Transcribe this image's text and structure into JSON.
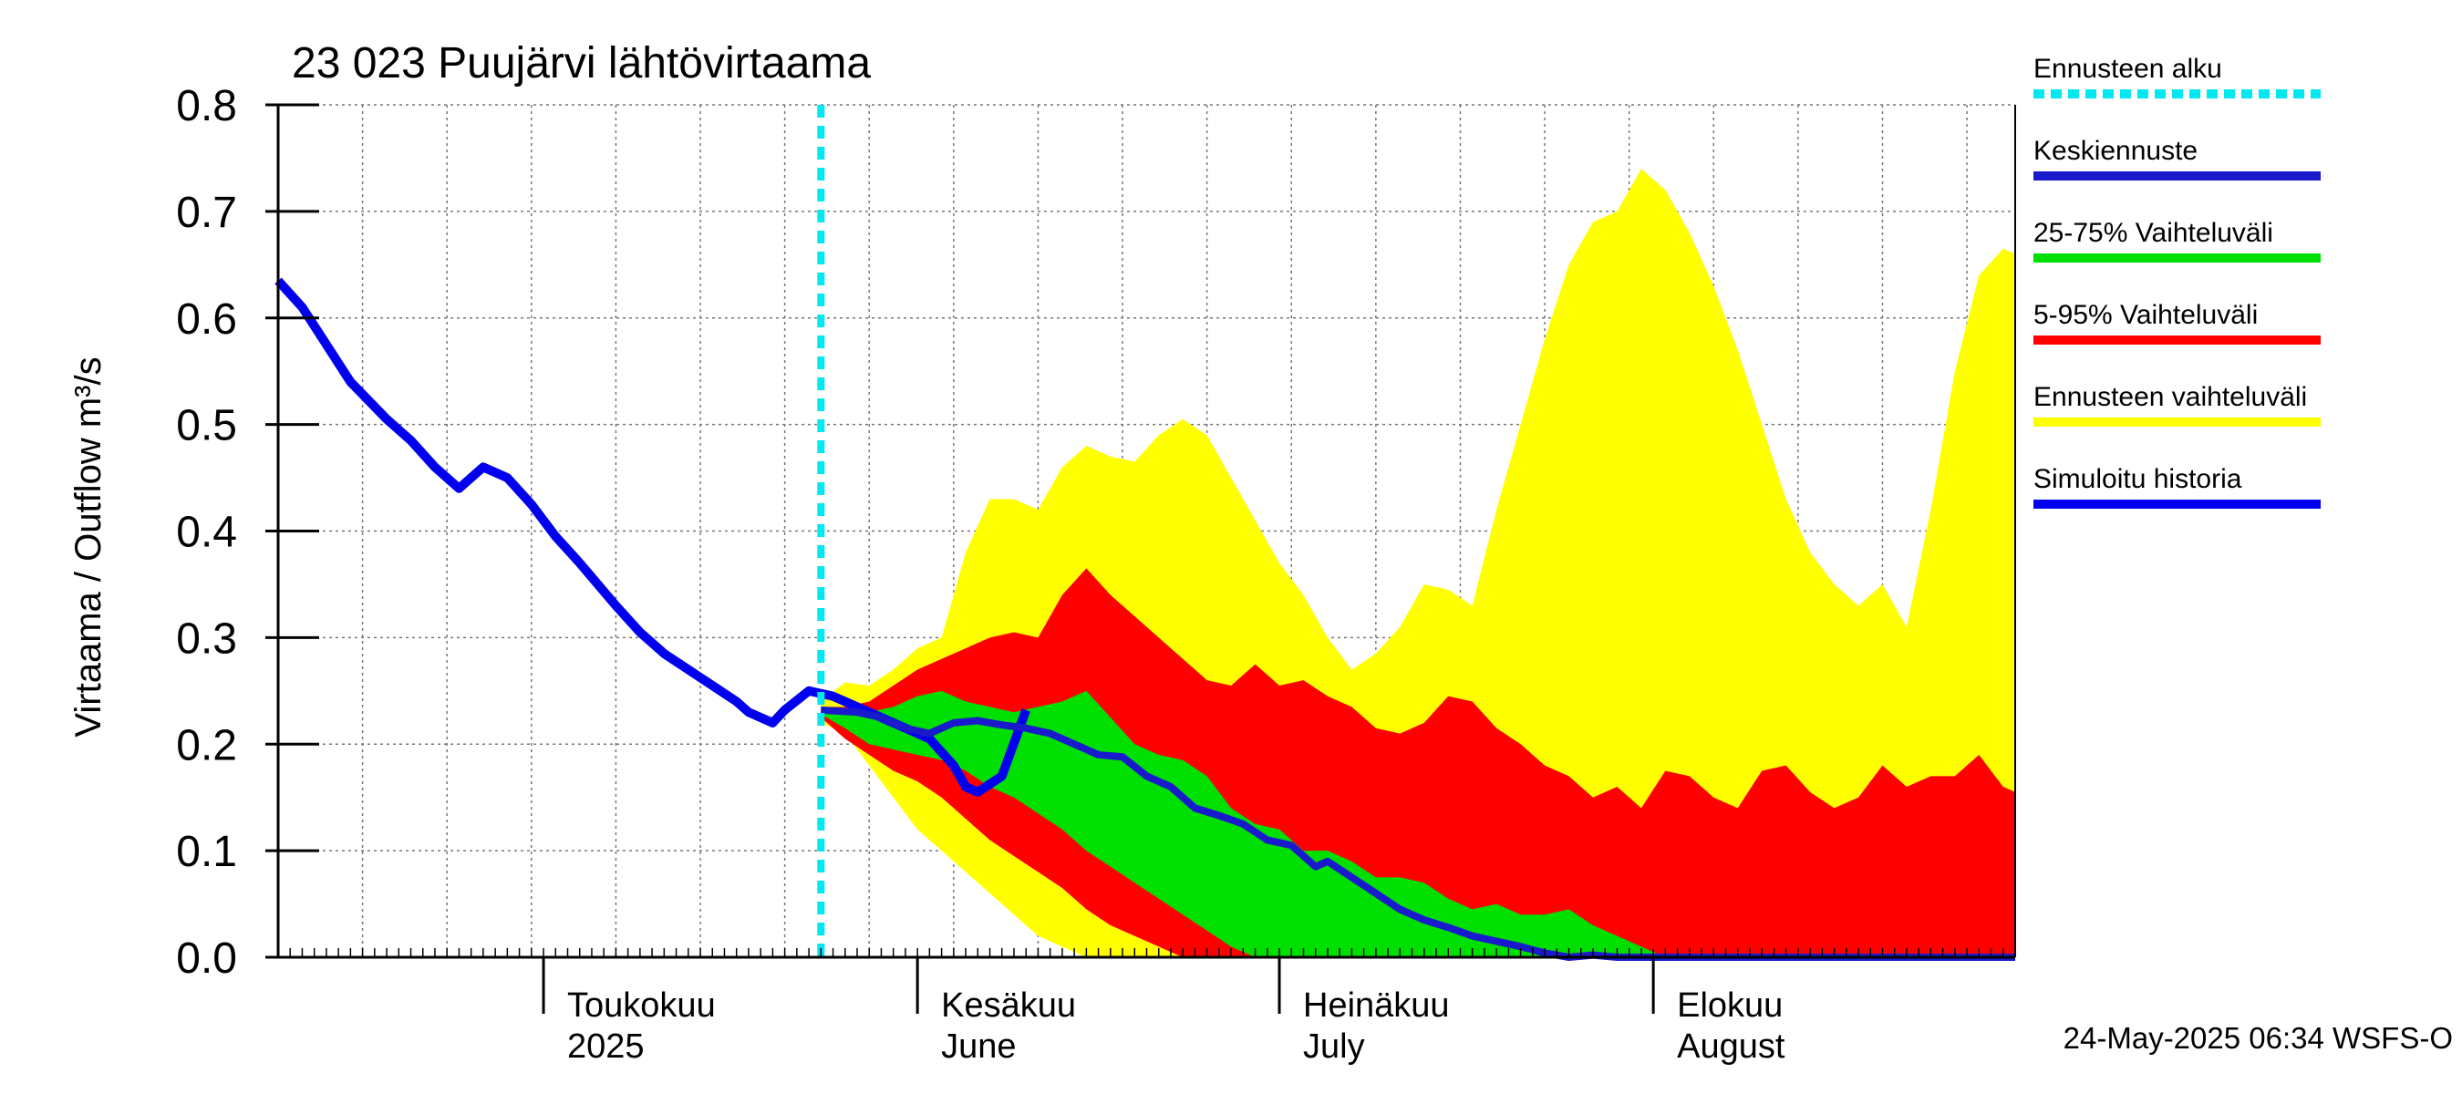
{
  "chart_data": {
    "type": "area",
    "title": "23 023 Puujärvi lähtövirtaama",
    "ylabel": "Virtaama / Outflow    m³/s",
    "ylim": [
      0,
      0.8
    ],
    "y_ticks": [
      "0.0",
      "0.1",
      "0.2",
      "0.3",
      "0.4",
      "0.5",
      "0.6",
      "0.7",
      "0.8"
    ],
    "x_range": [
      "2025-04-09",
      "2025-08-31"
    ],
    "month_labels": [
      {
        "date": "2025-05-01",
        "fi": "Toukokuu",
        "en": "2025"
      },
      {
        "date": "2025-06-01",
        "fi": "Kesäkuu",
        "en": "June"
      },
      {
        "date": "2025-07-01",
        "fi": "Heinäkuu",
        "en": "July"
      },
      {
        "date": "2025-08-01",
        "fi": "Elokuu",
        "en": "August"
      }
    ],
    "forecast_start": "2025-05-24",
    "grid": true,
    "legend_position": "right",
    "legend": [
      {
        "label": "Ennusteen alku",
        "color": "#00e8f0",
        "style": "dashed"
      },
      {
        "label": "Keskiennuste",
        "color": "#1a1acd",
        "style": "solid"
      },
      {
        "label": "25-75% Vaihteluväli",
        "color": "#00e000",
        "style": "solid"
      },
      {
        "label": "5-95% Vaihteluväli",
        "color": "#ff0000",
        "style": "solid"
      },
      {
        "label": "Ennusteen vaihteluväli",
        "color": "#ffff00",
        "style": "solid"
      },
      {
        "label": "Simuloitu historia",
        "color": "#0000ee",
        "style": "solid"
      }
    ],
    "footer": "24-May-2025 06:34 WSFS-O",
    "series": [
      {
        "name": "Simuloitu historia",
        "color": "#0000ee",
        "points": [
          [
            "2025-04-09",
            0.635
          ],
          [
            "2025-04-11",
            0.61
          ],
          [
            "2025-04-13",
            0.575
          ],
          [
            "2025-04-15",
            0.54
          ],
          [
            "2025-04-18",
            0.505
          ],
          [
            "2025-04-20",
            0.485
          ],
          [
            "2025-04-22",
            0.46
          ],
          [
            "2025-04-24",
            0.44
          ],
          [
            "2025-04-26",
            0.46
          ],
          [
            "2025-04-28",
            0.45
          ],
          [
            "2025-04-30",
            0.425
          ],
          [
            "2025-05-02",
            0.395
          ],
          [
            "2025-05-04",
            0.37
          ],
          [
            "2025-05-07",
            0.33
          ],
          [
            "2025-05-09",
            0.305
          ],
          [
            "2025-05-11",
            0.285
          ],
          [
            "2025-05-13",
            0.27
          ],
          [
            "2025-05-15",
            0.255
          ],
          [
            "2025-05-17",
            0.24
          ],
          [
            "2025-05-18",
            0.23
          ],
          [
            "2025-05-20",
            0.22
          ],
          [
            "2025-05-21",
            0.232
          ],
          [
            "2025-05-23",
            0.25
          ],
          [
            "2025-05-25",
            0.245
          ],
          [
            "2025-05-27",
            0.235
          ],
          [
            "2025-05-29",
            0.225
          ],
          [
            "2025-05-31",
            0.215
          ],
          [
            "2025-06-02",
            0.205
          ],
          [
            "2025-06-04",
            0.18
          ],
          [
            "2025-06-05",
            0.16
          ],
          [
            "2025-06-06",
            0.155
          ],
          [
            "2025-06-08",
            0.17
          ],
          [
            "2025-06-10",
            0.232
          ]
        ]
      },
      {
        "name": "Keskiennuste",
        "color": "#1a1acd",
        "points": [
          [
            "2025-05-24",
            0.232
          ],
          [
            "2025-05-27",
            0.23
          ],
          [
            "2025-05-29",
            0.225
          ],
          [
            "2025-05-31",
            0.215
          ],
          [
            "2025-06-02",
            0.21
          ],
          [
            "2025-06-04",
            0.22
          ],
          [
            "2025-06-06",
            0.222
          ],
          [
            "2025-06-08",
            0.218
          ],
          [
            "2025-06-10",
            0.215
          ],
          [
            "2025-06-12",
            0.21
          ],
          [
            "2025-06-14",
            0.2
          ],
          [
            "2025-06-16",
            0.19
          ],
          [
            "2025-06-18",
            0.188
          ],
          [
            "2025-06-20",
            0.17
          ],
          [
            "2025-06-22",
            0.16
          ],
          [
            "2025-06-24",
            0.14
          ],
          [
            "2025-06-26",
            0.133
          ],
          [
            "2025-06-28",
            0.125
          ],
          [
            "2025-06-30",
            0.11
          ],
          [
            "2025-07-02",
            0.105
          ],
          [
            "2025-07-04",
            0.085
          ],
          [
            "2025-07-05",
            0.09
          ],
          [
            "2025-07-07",
            0.075
          ],
          [
            "2025-07-09",
            0.06
          ],
          [
            "2025-07-11",
            0.045
          ],
          [
            "2025-07-13",
            0.035
          ],
          [
            "2025-07-15",
            0.028
          ],
          [
            "2025-07-17",
            0.02
          ],
          [
            "2025-07-19",
            0.015
          ],
          [
            "2025-07-21",
            0.01
          ],
          [
            "2025-07-23",
            0.004
          ],
          [
            "2025-07-25",
            0.0
          ],
          [
            "2025-07-27",
            0.002
          ],
          [
            "2025-07-29",
            0.0
          ],
          [
            "2025-08-31",
            0.0
          ]
        ]
      },
      {
        "name": "Ennusteen vaihteluväli",
        "color": "#ffff00",
        "upper": [
          [
            "2025-05-24",
            0.24
          ],
          [
            "2025-05-26",
            0.258
          ],
          [
            "2025-05-28",
            0.255
          ],
          [
            "2025-05-30",
            0.27
          ],
          [
            "2025-06-01",
            0.29
          ],
          [
            "2025-06-03",
            0.3
          ],
          [
            "2025-06-05",
            0.38
          ],
          [
            "2025-06-07",
            0.43
          ],
          [
            "2025-06-09",
            0.43
          ],
          [
            "2025-06-11",
            0.42
          ],
          [
            "2025-06-13",
            0.46
          ],
          [
            "2025-06-15",
            0.48
          ],
          [
            "2025-06-17",
            0.47
          ],
          [
            "2025-06-19",
            0.465
          ],
          [
            "2025-06-21",
            0.49
          ],
          [
            "2025-06-23",
            0.505
          ],
          [
            "2025-06-25",
            0.49
          ],
          [
            "2025-06-27",
            0.45
          ],
          [
            "2025-06-29",
            0.41
          ],
          [
            "2025-07-01",
            0.37
          ],
          [
            "2025-07-03",
            0.34
          ],
          [
            "2025-07-05",
            0.3
          ],
          [
            "2025-07-07",
            0.27
          ],
          [
            "2025-07-09",
            0.285
          ],
          [
            "2025-07-11",
            0.31
          ],
          [
            "2025-07-13",
            0.35
          ],
          [
            "2025-07-15",
            0.345
          ],
          [
            "2025-07-17",
            0.33
          ],
          [
            "2025-07-19",
            0.42
          ],
          [
            "2025-07-21",
            0.5
          ],
          [
            "2025-07-23",
            0.58
          ],
          [
            "2025-07-25",
            0.65
          ],
          [
            "2025-07-27",
            0.69
          ],
          [
            "2025-07-29",
            0.7
          ],
          [
            "2025-07-31",
            0.74
          ],
          [
            "2025-08-02",
            0.72
          ],
          [
            "2025-08-04",
            0.68
          ],
          [
            "2025-08-06",
            0.63
          ],
          [
            "2025-08-08",
            0.57
          ],
          [
            "2025-08-10",
            0.5
          ],
          [
            "2025-08-12",
            0.43
          ],
          [
            "2025-08-14",
            0.38
          ],
          [
            "2025-08-16",
            0.35
          ],
          [
            "2025-08-18",
            0.33
          ],
          [
            "2025-08-20",
            0.35
          ],
          [
            "2025-08-22",
            0.31
          ],
          [
            "2025-08-24",
            0.42
          ],
          [
            "2025-08-26",
            0.55
          ],
          [
            "2025-08-28",
            0.64
          ],
          [
            "2025-08-30",
            0.665
          ],
          [
            "2025-08-31",
            0.66
          ]
        ],
        "lower": [
          [
            "2025-05-24",
            0.22
          ],
          [
            "2025-05-26",
            0.21
          ],
          [
            "2025-05-28",
            0.18
          ],
          [
            "2025-05-30",
            0.15
          ],
          [
            "2025-06-01",
            0.12
          ],
          [
            "2025-06-03",
            0.1
          ],
          [
            "2025-06-05",
            0.08
          ],
          [
            "2025-06-07",
            0.06
          ],
          [
            "2025-06-09",
            0.04
          ],
          [
            "2025-06-11",
            0.02
          ],
          [
            "2025-06-13",
            0.01
          ],
          [
            "2025-06-15",
            0.0
          ],
          [
            "2025-08-31",
            0.0
          ]
        ]
      },
      {
        "name": "5-95% Vaihteluväli",
        "color": "#ff0000",
        "upper": [
          [
            "2025-05-24",
            0.235
          ],
          [
            "2025-05-26",
            0.235
          ],
          [
            "2025-05-28",
            0.24
          ],
          [
            "2025-05-30",
            0.255
          ],
          [
            "2025-06-01",
            0.27
          ],
          [
            "2025-06-03",
            0.28
          ],
          [
            "2025-06-05",
            0.29
          ],
          [
            "2025-06-07",
            0.3
          ],
          [
            "2025-06-09",
            0.305
          ],
          [
            "2025-06-11",
            0.3
          ],
          [
            "2025-06-13",
            0.34
          ],
          [
            "2025-06-15",
            0.365
          ],
          [
            "2025-06-17",
            0.34
          ],
          [
            "2025-06-19",
            0.32
          ],
          [
            "2025-06-21",
            0.3
          ],
          [
            "2025-06-23",
            0.28
          ],
          [
            "2025-06-25",
            0.26
          ],
          [
            "2025-06-27",
            0.255
          ],
          [
            "2025-06-29",
            0.275
          ],
          [
            "2025-07-01",
            0.255
          ],
          [
            "2025-07-03",
            0.26
          ],
          [
            "2025-07-05",
            0.245
          ],
          [
            "2025-07-07",
            0.235
          ],
          [
            "2025-07-09",
            0.215
          ],
          [
            "2025-07-11",
            0.21
          ],
          [
            "2025-07-13",
            0.22
          ],
          [
            "2025-07-15",
            0.245
          ],
          [
            "2025-07-17",
            0.24
          ],
          [
            "2025-07-19",
            0.215
          ],
          [
            "2025-07-21",
            0.2
          ],
          [
            "2025-07-23",
            0.18
          ],
          [
            "2025-07-25",
            0.17
          ],
          [
            "2025-07-27",
            0.15
          ],
          [
            "2025-07-29",
            0.16
          ],
          [
            "2025-07-31",
            0.14
          ],
          [
            "2025-08-02",
            0.175
          ],
          [
            "2025-08-04",
            0.17
          ],
          [
            "2025-08-06",
            0.15
          ],
          [
            "2025-08-08",
            0.14
          ],
          [
            "2025-08-10",
            0.175
          ],
          [
            "2025-08-12",
            0.18
          ],
          [
            "2025-08-14",
            0.155
          ],
          [
            "2025-08-16",
            0.14
          ],
          [
            "2025-08-18",
            0.15
          ],
          [
            "2025-08-20",
            0.18
          ],
          [
            "2025-08-22",
            0.16
          ],
          [
            "2025-08-24",
            0.17
          ],
          [
            "2025-08-26",
            0.17
          ],
          [
            "2025-08-28",
            0.19
          ],
          [
            "2025-08-30",
            0.16
          ],
          [
            "2025-08-31",
            0.155
          ]
        ],
        "lower": [
          [
            "2025-05-24",
            0.225
          ],
          [
            "2025-05-26",
            0.205
          ],
          [
            "2025-05-28",
            0.19
          ],
          [
            "2025-05-30",
            0.175
          ],
          [
            "2025-06-01",
            0.165
          ],
          [
            "2025-06-03",
            0.15
          ],
          [
            "2025-06-05",
            0.13
          ],
          [
            "2025-06-07",
            0.11
          ],
          [
            "2025-06-09",
            0.095
          ],
          [
            "2025-06-11",
            0.08
          ],
          [
            "2025-06-13",
            0.065
          ],
          [
            "2025-06-15",
            0.045
          ],
          [
            "2025-06-17",
            0.03
          ],
          [
            "2025-06-19",
            0.02
          ],
          [
            "2025-06-21",
            0.01
          ],
          [
            "2025-06-23",
            0.0
          ],
          [
            "2025-08-31",
            0.0
          ]
        ]
      },
      {
        "name": "25-75% Vaihteluväli",
        "color": "#00e000",
        "upper": [
          [
            "2025-05-24",
            0.232
          ],
          [
            "2025-05-26",
            0.232
          ],
          [
            "2025-05-28",
            0.23
          ],
          [
            "2025-05-30",
            0.235
          ],
          [
            "2025-06-01",
            0.245
          ],
          [
            "2025-06-03",
            0.25
          ],
          [
            "2025-06-05",
            0.24
          ],
          [
            "2025-06-07",
            0.235
          ],
          [
            "2025-06-09",
            0.23
          ],
          [
            "2025-06-11",
            0.235
          ],
          [
            "2025-06-13",
            0.24
          ],
          [
            "2025-06-15",
            0.25
          ],
          [
            "2025-06-17",
            0.225
          ],
          [
            "2025-06-19",
            0.2
          ],
          [
            "2025-06-21",
            0.19
          ],
          [
            "2025-06-23",
            0.185
          ],
          [
            "2025-06-25",
            0.17
          ],
          [
            "2025-06-27",
            0.14
          ],
          [
            "2025-06-29",
            0.125
          ],
          [
            "2025-07-01",
            0.12
          ],
          [
            "2025-07-03",
            0.1
          ],
          [
            "2025-07-05",
            0.1
          ],
          [
            "2025-07-07",
            0.09
          ],
          [
            "2025-07-09",
            0.075
          ],
          [
            "2025-07-11",
            0.075
          ],
          [
            "2025-07-13",
            0.07
          ],
          [
            "2025-07-15",
            0.055
          ],
          [
            "2025-07-17",
            0.045
          ],
          [
            "2025-07-19",
            0.05
          ],
          [
            "2025-07-21",
            0.04
          ],
          [
            "2025-07-23",
            0.04
          ],
          [
            "2025-07-25",
            0.045
          ],
          [
            "2025-07-27",
            0.03
          ],
          [
            "2025-07-29",
            0.02
          ],
          [
            "2025-07-31",
            0.01
          ],
          [
            "2025-08-02",
            0.0
          ],
          [
            "2025-08-31",
            0.0
          ]
        ],
        "lower": [
          [
            "2025-05-24",
            0.228
          ],
          [
            "2025-05-26",
            0.215
          ],
          [
            "2025-05-28",
            0.2
          ],
          [
            "2025-05-30",
            0.195
          ],
          [
            "2025-06-01",
            0.19
          ],
          [
            "2025-06-03",
            0.185
          ],
          [
            "2025-06-05",
            0.175
          ],
          [
            "2025-06-07",
            0.16
          ],
          [
            "2025-06-09",
            0.15
          ],
          [
            "2025-06-11",
            0.135
          ],
          [
            "2025-06-13",
            0.12
          ],
          [
            "2025-06-15",
            0.1
          ],
          [
            "2025-06-17",
            0.085
          ],
          [
            "2025-06-19",
            0.07
          ],
          [
            "2025-06-21",
            0.055
          ],
          [
            "2025-06-23",
            0.04
          ],
          [
            "2025-06-25",
            0.025
          ],
          [
            "2025-06-27",
            0.01
          ],
          [
            "2025-06-29",
            0.0
          ],
          [
            "2025-08-31",
            0.0
          ]
        ]
      }
    ]
  }
}
